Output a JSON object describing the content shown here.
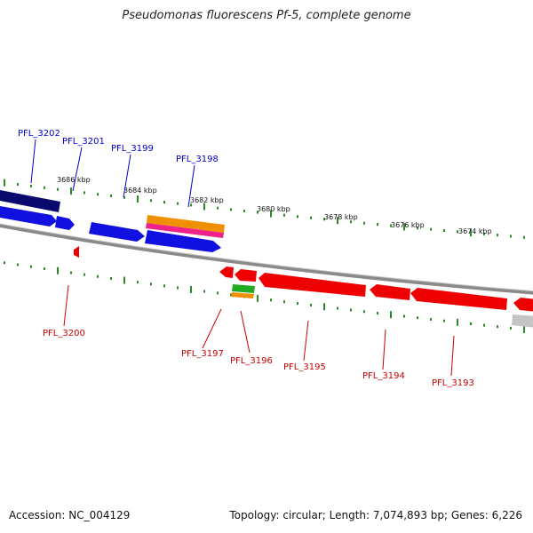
{
  "title": "Pseudomonas fluorescens Pf-5, complete genome",
  "footer": {
    "accession": "Accession: NC_004129",
    "summary": "Topology: circular; Length: 7,074,893 bp; Genes: 6,226"
  },
  "colors": {
    "forward_label": "#0000cc",
    "reverse_label": "#cc0000",
    "tick": "#2a8a2a",
    "backbone": "#808080"
  },
  "ticks": [
    "3686 kbp",
    "3684 kbp",
    "3682 kbp",
    "3680 kbp",
    "3678 kbp",
    "3676 kbp",
    "3674 kbp"
  ],
  "forward_genes": [
    "PFL_3202",
    "PFL_3201",
    "PFL_3199",
    "PFL_3198"
  ],
  "reverse_genes": [
    "PFL_3200",
    "PFL_3197",
    "PFL_3196",
    "PFL_3195",
    "PFL_3194",
    "PFL_3193"
  ]
}
